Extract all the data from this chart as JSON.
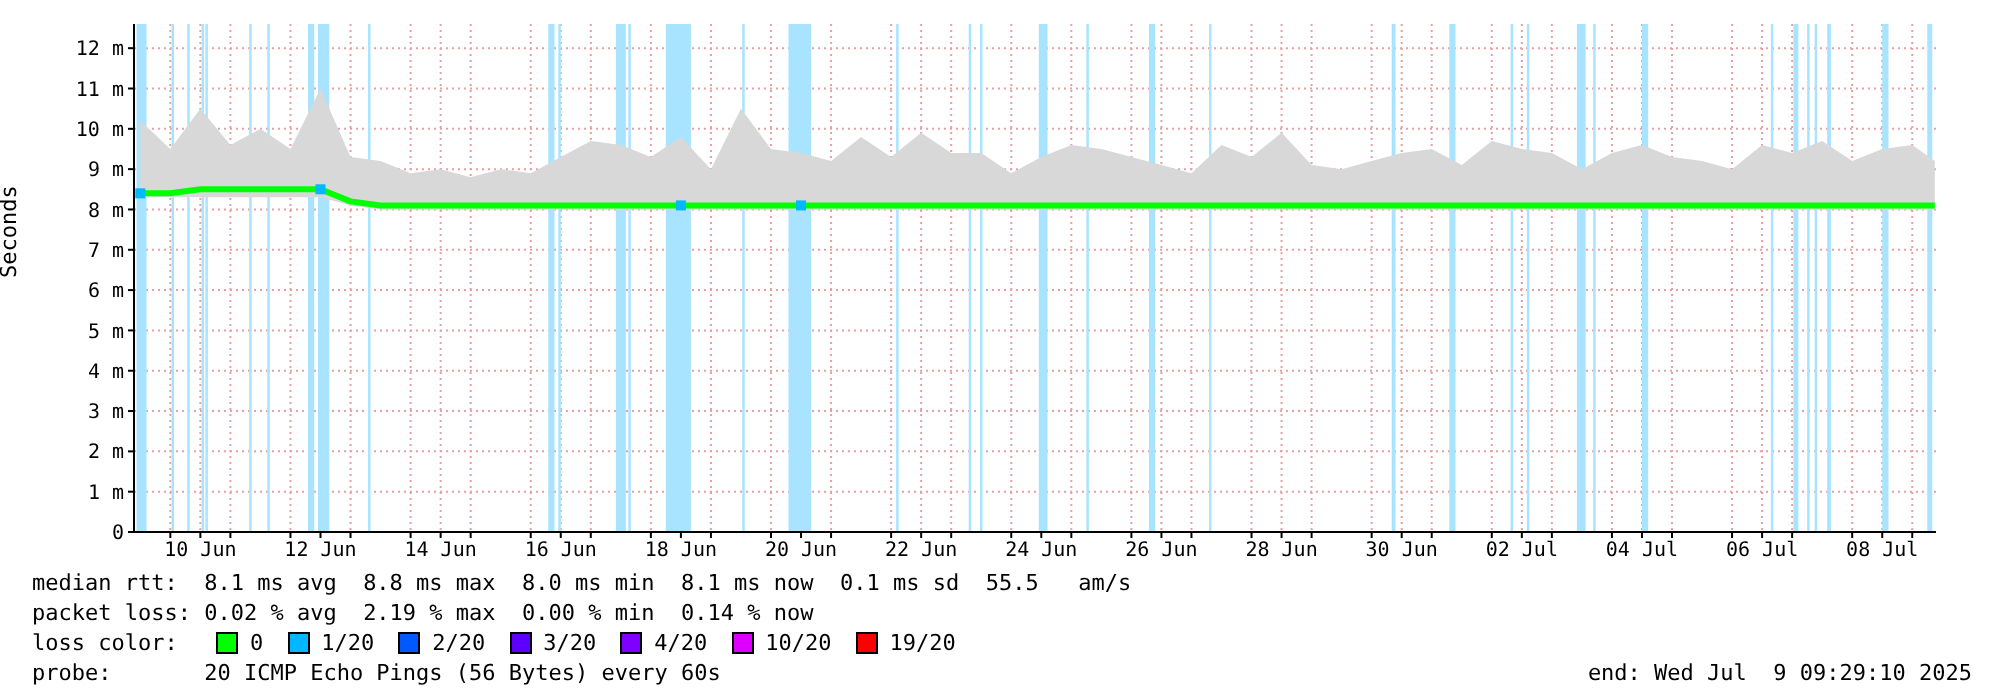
{
  "chart_data": {
    "type": "line",
    "ylabel": "Seconds",
    "x": [
      "2025-06-09T12:00",
      "2025-06-10T00:00",
      "2025-06-10T12:00",
      "2025-06-11T00:00",
      "2025-06-11T12:00",
      "2025-06-12T00:00",
      "2025-06-12T12:00",
      "2025-06-13T00:00",
      "2025-06-13T12:00",
      "2025-06-14T00:00",
      "2025-06-14T12:00",
      "2025-06-15T00:00",
      "2025-06-15T12:00",
      "2025-06-16T00:00",
      "2025-06-16T12:00",
      "2025-06-17T00:00",
      "2025-06-17T12:00",
      "2025-06-18T00:00",
      "2025-06-18T12:00",
      "2025-06-19T00:00",
      "2025-06-19T12:00",
      "2025-06-20T00:00",
      "2025-06-20T12:00",
      "2025-06-21T00:00",
      "2025-06-21T12:00",
      "2025-06-22T00:00",
      "2025-06-22T12:00",
      "2025-06-23T00:00",
      "2025-06-23T12:00",
      "2025-06-24T00:00",
      "2025-06-24T12:00",
      "2025-06-25T00:00",
      "2025-06-25T12:00",
      "2025-06-26T00:00",
      "2025-06-26T12:00",
      "2025-06-27T00:00",
      "2025-06-27T12:00",
      "2025-06-28T00:00",
      "2025-06-28T12:00",
      "2025-06-29T00:00",
      "2025-06-29T12:00",
      "2025-06-30T00:00",
      "2025-06-30T12:00",
      "2025-07-01T00:00",
      "2025-07-01T12:00",
      "2025-07-02T00:00",
      "2025-07-02T12:00",
      "2025-07-03T00:00",
      "2025-07-03T12:00",
      "2025-07-04T00:00",
      "2025-07-04T12:00",
      "2025-07-05T00:00",
      "2025-07-05T12:00",
      "2025-07-06T00:00",
      "2025-07-06T12:00",
      "2025-07-07T00:00",
      "2025-07-07T12:00",
      "2025-07-08T00:00",
      "2025-07-08T12:00",
      "2025-07-09T00:00",
      "2025-07-09T09:00"
    ],
    "series": [
      {
        "name": "0",
        "color": "#00ff00",
        "values": [
          8.4,
          8.4,
          8.5,
          8.5,
          8.5,
          8.5,
          8.5,
          8.2,
          8.1,
          8.1,
          8.1,
          8.1,
          8.1,
          8.1,
          8.1,
          8.1,
          8.1,
          8.1,
          8.1,
          8.1,
          8.1,
          8.1,
          8.1,
          8.1,
          8.1,
          8.1,
          8.1,
          8.1,
          8.1,
          8.1,
          8.1,
          8.1,
          8.1,
          8.1,
          8.1,
          8.1,
          8.1,
          8.1,
          8.1,
          8.1,
          8.1,
          8.1,
          8.1,
          8.1,
          8.1,
          8.1,
          8.1,
          8.1,
          8.1,
          8.1,
          8.1,
          8.1,
          8.1,
          8.1,
          8.1,
          8.1,
          8.1,
          8.1,
          8.1,
          8.1,
          8.1
        ],
        "lower": [
          8.3,
          8.3,
          8.3,
          8.3,
          8.3,
          8.3,
          8.3,
          8.1,
          8,
          8,
          8,
          8,
          8,
          8,
          8,
          8,
          8,
          8,
          8,
          8,
          8,
          8,
          8,
          8,
          8,
          8,
          8,
          8,
          8,
          8,
          8,
          8,
          8,
          8,
          8,
          8,
          8,
          8,
          8,
          8,
          8,
          8,
          8,
          8,
          8,
          8,
          8,
          8,
          8,
          8,
          8,
          8,
          8,
          8,
          8,
          8,
          8,
          8,
          8,
          8,
          8
        ],
        "upper": [
          10.2,
          9.5,
          10.5,
          9.6,
          10,
          9.5,
          11,
          9.3,
          9.2,
          8.9,
          9,
          8.8,
          9,
          8.9,
          9.3,
          9.7,
          9.6,
          9.3,
          9.8,
          9,
          10.5,
          9.5,
          9.4,
          9.2,
          9.8,
          9.3,
          9.9,
          9.4,
          9.4,
          8.9,
          9.3,
          9.6,
          9.5,
          9.3,
          9.1,
          8.9,
          9.6,
          9.3,
          9.9,
          9.1,
          9,
          9.2,
          9.4,
          9.5,
          9.1,
          9.7,
          9.5,
          9.4,
          9,
          9.4,
          9.6,
          9.3,
          9.2,
          9,
          9.6,
          9.4,
          9.7,
          9.2,
          9.5,
          9.6,
          9.2
        ]
      },
      {
        "name": "1/20",
        "color": "#00b8ff",
        "type": "scatter",
        "marker": "square",
        "x": [
          "2025-06-09T12:00",
          "2025-06-12T12:00",
          "2025-06-18T12:00",
          "2025-06-20T12:00"
        ],
        "values": [
          8.4,
          8.5,
          8.1,
          8.1
        ]
      },
      {
        "name": "2/20",
        "color": "#0059ff",
        "values": [
          null,
          null,
          null,
          null,
          null,
          null,
          null,
          null,
          null,
          null,
          null,
          null,
          null,
          null,
          null,
          null,
          null,
          null,
          null,
          null,
          null,
          null,
          null,
          null,
          null,
          null,
          null,
          null,
          null,
          null,
          null,
          null,
          null,
          null,
          null,
          null,
          null,
          null,
          null,
          null,
          null,
          null,
          null,
          null,
          null,
          null,
          null,
          null,
          null,
          null,
          null,
          null,
          null,
          null,
          null,
          null,
          null,
          null,
          null,
          null,
          null
        ]
      },
      {
        "name": "3/20",
        "color": "#5e00ff",
        "values": [
          null,
          null,
          null,
          null,
          null,
          null,
          null,
          null,
          null,
          null,
          null,
          null,
          null,
          null,
          null,
          null,
          null,
          null,
          null,
          null,
          null,
          null,
          null,
          null,
          null,
          null,
          null,
          null,
          null,
          null,
          null,
          null,
          null,
          null,
          null,
          null,
          null,
          null,
          null,
          null,
          null,
          null,
          null,
          null,
          null,
          null,
          null,
          null,
          null,
          null,
          null,
          null,
          null,
          null,
          null,
          null,
          null,
          null,
          null,
          null,
          null
        ]
      },
      {
        "name": "4/20",
        "color": "#7e00ff",
        "values": [
          null,
          null,
          null,
          null,
          null,
          null,
          null,
          null,
          null,
          null,
          null,
          null,
          null,
          null,
          null,
          null,
          null,
          null,
          null,
          null,
          null,
          null,
          null,
          null,
          null,
          null,
          null,
          null,
          null,
          null,
          null,
          null,
          null,
          null,
          null,
          null,
          null,
          null,
          null,
          null,
          null,
          null,
          null,
          null,
          null,
          null,
          null,
          null,
          null,
          null,
          null,
          null,
          null,
          null,
          null,
          null,
          null,
          null,
          null,
          null,
          null
        ]
      },
      {
        "name": "10/20",
        "color": "#dd00ff",
        "values": [
          null,
          null,
          null,
          null,
          null,
          null,
          null,
          null,
          null,
          null,
          null,
          null,
          null,
          null,
          null,
          null,
          null,
          null,
          null,
          null,
          null,
          null,
          null,
          null,
          null,
          null,
          null,
          null,
          null,
          null,
          null,
          null,
          null,
          null,
          null,
          null,
          null,
          null,
          null,
          null,
          null,
          null,
          null,
          null,
          null,
          null,
          null,
          null,
          null,
          null,
          null,
          null,
          null,
          null,
          null,
          null,
          null,
          null,
          null,
          null,
          null
        ]
      },
      {
        "name": "19/20",
        "color": "#ff0000",
        "values": [
          null,
          null,
          null,
          null,
          null,
          null,
          null,
          null,
          null,
          null,
          null,
          null,
          null,
          null,
          null,
          null,
          null,
          null,
          null,
          null,
          null,
          null,
          null,
          null,
          null,
          null,
          null,
          null,
          null,
          null,
          null,
          null,
          null,
          null,
          null,
          null,
          null,
          null,
          null,
          null,
          null,
          null,
          null,
          null,
          null,
          null,
          null,
          null,
          null,
          null,
          null,
          null,
          null,
          null,
          null,
          null,
          null,
          null,
          null,
          null,
          null
        ]
      }
    ],
    "legend": "bottom",
    "legend_title": "loss color:",
    "grid": true,
    "marker": "none",
    "xlim": [
      "2025-06-09T09:29",
      "2025-07-09T09:29"
    ],
    "xticks": [
      {
        "value": "2025-06-10T00:00",
        "label": null
      },
      {
        "value": "2025-06-10T12:00",
        "label": "10 Jun"
      },
      {
        "value": "2025-06-11T00:00",
        "label": null
      },
      {
        "value": "2025-06-12T00:00",
        "label": null
      },
      {
        "value": "2025-06-12T12:00",
        "label": "12 Jun"
      },
      {
        "value": "2025-06-13T00:00",
        "label": null
      },
      {
        "value": "2025-06-14T00:00",
        "label": null
      },
      {
        "value": "2025-06-14T12:00",
        "label": "14 Jun"
      },
      {
        "value": "2025-06-15T00:00",
        "label": null
      },
      {
        "value": "2025-06-16T00:00",
        "label": null
      },
      {
        "value": "2025-06-16T12:00",
        "label": "16 Jun"
      },
      {
        "value": "2025-06-17T00:00",
        "label": null
      },
      {
        "value": "2025-06-18T00:00",
        "label": null
      },
      {
        "value": "2025-06-18T12:00",
        "label": "18 Jun"
      },
      {
        "value": "2025-06-19T00:00",
        "label": null
      },
      {
        "value": "2025-06-20T00:00",
        "label": null
      },
      {
        "value": "2025-06-20T12:00",
        "label": "20 Jun"
      },
      {
        "value": "2025-06-21T00:00",
        "label": null
      },
      {
        "value": "2025-06-22T00:00",
        "label": null
      },
      {
        "value": "2025-06-22T12:00",
        "label": "22 Jun"
      },
      {
        "value": "2025-06-23T00:00",
        "label": null
      },
      {
        "value": "2025-06-24T00:00",
        "label": null
      },
      {
        "value": "2025-06-24T12:00",
        "label": "24 Jun"
      },
      {
        "value": "2025-06-25T00:00",
        "label": null
      },
      {
        "value": "2025-06-26T00:00",
        "label": null
      },
      {
        "value": "2025-06-26T12:00",
        "label": "26 Jun"
      },
      {
        "value": "2025-06-27T00:00",
        "label": null
      },
      {
        "value": "2025-06-28T00:00",
        "label": null
      },
      {
        "value": "2025-06-28T12:00",
        "label": "28 Jun"
      },
      {
        "value": "2025-06-29T00:00",
        "label": null
      },
      {
        "value": "2025-06-30T00:00",
        "label": null
      },
      {
        "value": "2025-06-30T12:00",
        "label": "30 Jun"
      },
      {
        "value": "2025-07-01T00:00",
        "label": null
      },
      {
        "value": "2025-07-02T00:00",
        "label": null
      },
      {
        "value": "2025-07-02T12:00",
        "label": "02 Jul"
      },
      {
        "value": "2025-07-03T00:00",
        "label": null
      },
      {
        "value": "2025-07-04T00:00",
        "label": null
      },
      {
        "value": "2025-07-04T12:00",
        "label": "04 Jul"
      },
      {
        "value": "2025-07-05T00:00",
        "label": null
      },
      {
        "value": "2025-07-06T00:00",
        "label": null
      },
      {
        "value": "2025-07-06T12:00",
        "label": "06 Jul"
      },
      {
        "value": "2025-07-07T00:00",
        "label": null
      },
      {
        "value": "2025-07-08T00:00",
        "label": null
      },
      {
        "value": "2025-07-08T12:00",
        "label": "08 Jul"
      },
      {
        "value": "2025-07-09T00:00",
        "label": null
      }
    ],
    "ylim": [
      0,
      12.6
    ],
    "yticks": [
      0,
      {
        "value": 1,
        "label": "1 m"
      },
      {
        "value": 2,
        "label": "2 m"
      },
      {
        "value": 3,
        "label": "3 m"
      },
      {
        "value": 4,
        "label": "4 m"
      },
      {
        "value": 5,
        "label": "5 m"
      },
      {
        "value": 6,
        "label": "6 m"
      },
      {
        "value": 7,
        "label": "7 m"
      },
      {
        "value": 8,
        "label": "8 m"
      },
      {
        "value": 9,
        "label": "9 m"
      },
      {
        "value": 10,
        "label": "10 m"
      },
      {
        "value": 11,
        "label": "11 m"
      },
      {
        "value": 12,
        "label": "12 m"
      }
    ],
    "bands": [
      {
        "axis": "x",
        "from": "2025-06-09T10:30",
        "to": "2025-06-09T14:30",
        "color": "#a8e4ff"
      },
      {
        "axis": "x",
        "from": "2025-06-10T00:30",
        "to": "2025-06-10T01:30",
        "color": "#a8e4ff"
      },
      {
        "axis": "x",
        "from": "2025-06-10T06:45",
        "to": "2025-06-10T07:45",
        "color": "#a8e4ff"
      },
      {
        "axis": "x",
        "from": "2025-06-10T12:30",
        "to": "2025-06-10T13:30",
        "color": "#a8e4ff"
      },
      {
        "axis": "x",
        "from": "2025-06-10T14:00",
        "to": "2025-06-10T15:00",
        "color": "#a8e4ff"
      },
      {
        "axis": "x",
        "from": "2025-06-11T07:30",
        "to": "2025-06-11T08:30",
        "color": "#a8e4ff"
      },
      {
        "axis": "x",
        "from": "2025-06-11T14:45",
        "to": "2025-06-11T15:45",
        "color": "#a8e4ff"
      },
      {
        "axis": "x",
        "from": "2025-06-12T07:00",
        "to": "2025-06-12T09:30",
        "color": "#a8e4ff"
      },
      {
        "axis": "x",
        "from": "2025-06-12T11:00",
        "to": "2025-06-12T15:30",
        "color": "#a8e4ff"
      },
      {
        "axis": "x",
        "from": "2025-06-13T07:00",
        "to": "2025-06-13T08:00",
        "color": "#a8e4ff"
      },
      {
        "axis": "x",
        "from": "2025-06-16T07:00",
        "to": "2025-06-16T09:30",
        "color": "#a8e4ff"
      },
      {
        "axis": "x",
        "from": "2025-06-16T11:00",
        "to": "2025-06-16T12:00",
        "color": "#a8e4ff"
      },
      {
        "axis": "x",
        "from": "2025-06-17T10:00",
        "to": "2025-06-17T14:00",
        "color": "#a8e4ff"
      },
      {
        "axis": "x",
        "from": "2025-06-17T15:00",
        "to": "2025-06-17T16:00",
        "color": "#a8e4ff"
      },
      {
        "axis": "x",
        "from": "2025-06-18T06:00",
        "to": "2025-06-18T16:00",
        "color": "#a8e4ff"
      },
      {
        "axis": "x",
        "from": "2025-06-19T12:30",
        "to": "2025-06-19T13:30",
        "color": "#a8e4ff"
      },
      {
        "axis": "x",
        "from": "2025-06-20T07:00",
        "to": "2025-06-20T16:00",
        "color": "#a8e4ff"
      },
      {
        "axis": "x",
        "from": "2025-06-22T02:00",
        "to": "2025-06-22T03:00",
        "color": "#a8e4ff"
      },
      {
        "axis": "x",
        "from": "2025-06-23T07:00",
        "to": "2025-06-23T08:00",
        "color": "#a8e4ff"
      },
      {
        "axis": "x",
        "from": "2025-06-23T11:30",
        "to": "2025-06-23T12:30",
        "color": "#a8e4ff"
      },
      {
        "axis": "x",
        "from": "2025-06-24T11:00",
        "to": "2025-06-24T14:30",
        "color": "#a8e4ff"
      },
      {
        "axis": "x",
        "from": "2025-06-25T06:00",
        "to": "2025-06-25T07:00",
        "color": "#a8e4ff"
      },
      {
        "axis": "x",
        "from": "2025-06-26T07:00",
        "to": "2025-06-26T09:30",
        "color": "#a8e4ff"
      },
      {
        "axis": "x",
        "from": "2025-06-27T07:00",
        "to": "2025-06-27T08:00",
        "color": "#a8e4ff"
      },
      {
        "axis": "x",
        "from": "2025-06-30T08:00",
        "to": "2025-06-30T09:30",
        "color": "#a8e4ff"
      },
      {
        "axis": "x",
        "from": "2025-07-01T07:00",
        "to": "2025-07-01T09:30",
        "color": "#a8e4ff"
      },
      {
        "axis": "x",
        "from": "2025-07-02T07:30",
        "to": "2025-07-02T08:30",
        "color": "#a8e4ff"
      },
      {
        "axis": "x",
        "from": "2025-07-02T14:00",
        "to": "2025-07-02T15:00",
        "color": "#a8e4ff"
      },
      {
        "axis": "x",
        "from": "2025-07-03T10:00",
        "to": "2025-07-03T13:30",
        "color": "#a8e4ff"
      },
      {
        "axis": "x",
        "from": "2025-07-03T16:30",
        "to": "2025-07-03T17:30",
        "color": "#a8e4ff"
      },
      {
        "axis": "x",
        "from": "2025-07-04T12:00",
        "to": "2025-07-04T14:30",
        "color": "#a8e4ff"
      },
      {
        "axis": "x",
        "from": "2025-07-06T15:30",
        "to": "2025-07-06T16:30",
        "color": "#a8e4ff"
      },
      {
        "axis": "x",
        "from": "2025-07-07T00:30",
        "to": "2025-07-07T02:30",
        "color": "#a8e4ff"
      },
      {
        "axis": "x",
        "from": "2025-07-07T06:00",
        "to": "2025-07-07T07:00",
        "color": "#a8e4ff"
      },
      {
        "axis": "x",
        "from": "2025-07-07T09:00",
        "to": "2025-07-07T10:00",
        "color": "#a8e4ff"
      },
      {
        "axis": "x",
        "from": "2025-07-07T14:00",
        "to": "2025-07-07T15:30",
        "color": "#a8e4ff"
      },
      {
        "axis": "x",
        "from": "2025-07-08T12:00",
        "to": "2025-07-08T14:30",
        "color": "#a8e4ff"
      },
      {
        "axis": "x",
        "from": "2025-07-09T06:00",
        "to": "2025-07-09T08:00",
        "color": "#a8e4ff"
      }
    ],
    "annotations": [
      "median rtt:  8.1 ms avg  8.8 ms max  8.0 ms min  8.1 ms now  0.1 ms sd  55.5   am/s",
      "packet loss: 0.02 % avg  2.19 % max  0.00 % min  0.14 % now",
      "probe:       20 ICMP Echo Pings (56 Bytes) every 60s",
      "end: Wed Jul  9 09:29:10 2025"
    ]
  }
}
